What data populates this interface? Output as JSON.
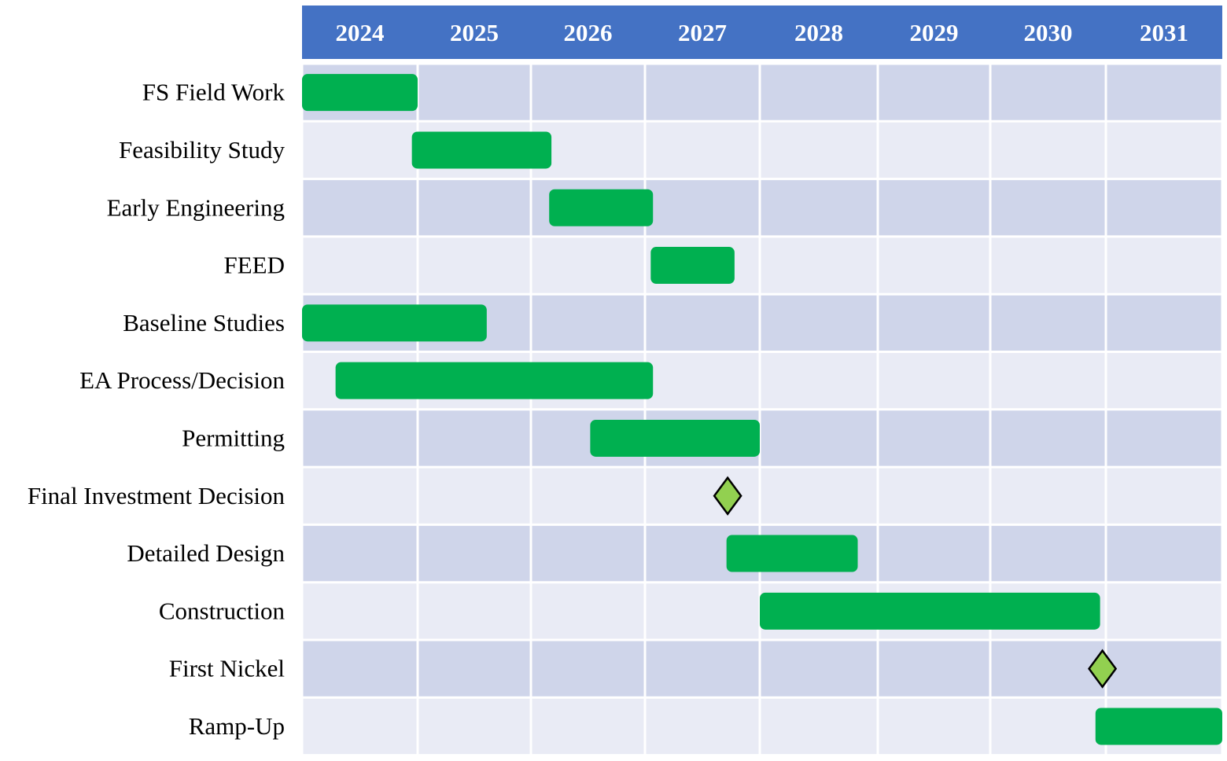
{
  "chart_data": {
    "type": "gantt",
    "title": "",
    "categories": [
      "2024",
      "2025",
      "2026",
      "2027",
      "2028",
      "2029",
      "2030",
      "2031"
    ],
    "xlim": [
      2024.0,
      2032.0
    ],
    "tasks": [
      {
        "label": "FS Field Work",
        "kind": "bar",
        "start": 2024.0,
        "end": 2025.0
      },
      {
        "label": "Feasibility Study",
        "kind": "bar",
        "start": 2024.95,
        "end": 2026.18
      },
      {
        "label": "Early Engineering",
        "kind": "bar",
        "start": 2026.16,
        "end": 2027.07
      },
      {
        "label": "FEED",
        "kind": "bar",
        "start": 2027.05,
        "end": 2027.78
      },
      {
        "label": "Baseline Studies",
        "kind": "bar",
        "start": 2024.0,
        "end": 2025.61
      },
      {
        "label": "EA Process/Decision",
        "kind": "bar",
        "start": 2024.29,
        "end": 2027.07
      },
      {
        "label": "Permitting",
        "kind": "bar",
        "start": 2026.52,
        "end": 2028.0
      },
      {
        "label": "Final Investment Decision",
        "kind": "milestone",
        "start": 2027.72
      },
      {
        "label": "Detailed Design",
        "kind": "bar",
        "start": 2027.71,
        "end": 2028.83
      },
      {
        "label": "Construction",
        "kind": "bar",
        "start": 2028.0,
        "end": 2030.95
      },
      {
        "label": "First Nickel",
        "kind": "milestone",
        "start": 2030.97
      },
      {
        "label": "Ramp-Up",
        "kind": "bar",
        "start": 2030.91,
        "end": 2032.0
      }
    ],
    "colors": {
      "header": "#4472C4",
      "row_dark": "#CFD5EA",
      "row_light": "#E9EBF5",
      "bar": "#00B050",
      "milestone": "#92D050"
    },
    "grid": true,
    "legend": "none"
  }
}
